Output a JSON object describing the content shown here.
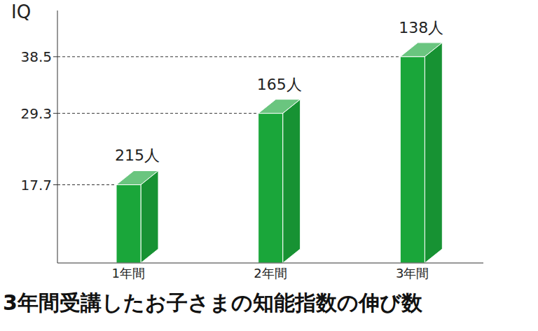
{
  "chart_data": {
    "type": "bar",
    "title": "3年間受講したお子さまの知能指数の伸び数",
    "y_label": "IQ",
    "categories": [
      "1年間",
      "2年間",
      "3年間"
    ],
    "values": [
      17.7,
      29.3,
      38.5
    ],
    "bar_annotations": [
      "215人",
      "165人",
      "138人"
    ],
    "color": "#1aa63a",
    "ylim": [
      5,
      46
    ],
    "yticks": [
      17.7,
      29.3,
      38.5
    ],
    "grid": true
  }
}
